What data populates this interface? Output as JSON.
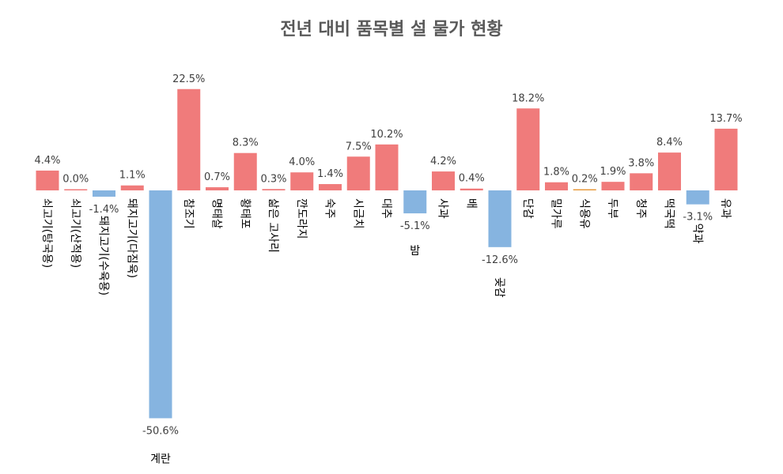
{
  "chart_data": {
    "type": "bar",
    "title": "전년 대비 품목별 설 물가 현황",
    "categories": [
      "쇠고기(탕국용)",
      "쇠고기(산적용)",
      "돼지고기(수육용)",
      "돼지고기(다짐육)",
      "계란",
      "참조기",
      "명태살",
      "황태포",
      "삶은 고사리",
      "깐도라지",
      "숙주",
      "시금치",
      "대추",
      "밤",
      "사과",
      "배",
      "곶감",
      "단감",
      "밀가루",
      "식용유",
      "두부",
      "청주",
      "떡국떡",
      "약과",
      "유과"
    ],
    "values": [
      4.4,
      0.0,
      -1.4,
      1.1,
      -50.6,
      22.5,
      0.7,
      8.3,
      0.3,
      4.0,
      1.4,
      7.5,
      10.2,
      -5.1,
      4.2,
      0.4,
      -12.6,
      18.2,
      1.8,
      0.2,
      1.9,
      3.8,
      8.4,
      -3.1,
      13.7
    ],
    "value_labels": [
      "4.4%",
      "0.0%",
      "-1.4%",
      "1.1%",
      "-50.6%",
      "22.5%",
      "0.7%",
      "8.3%",
      "0.3%",
      "4.0%",
      "1.4%",
      "7.5%",
      "10.2%",
      "-5.1%",
      "4.2%",
      "0.4%",
      "-12.6%",
      "18.2%",
      "1.8%",
      "0.2%",
      "1.9%",
      "3.8%",
      "8.4%",
      "-3.1%",
      "13.7%"
    ],
    "unit": "%",
    "ylim": [
      -50.6,
      22.5
    ],
    "grid": false,
    "legend": "none",
    "colors": {
      "positive": "#f07b7b",
      "negative": "#86b4e0",
      "special": "#e89a3c"
    }
  }
}
